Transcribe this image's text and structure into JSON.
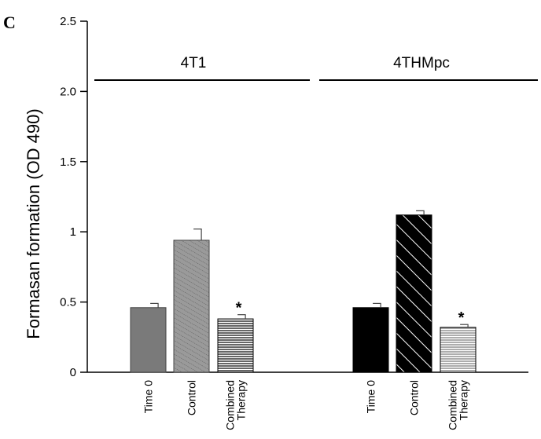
{
  "chart_data": {
    "type": "bar",
    "panel_label": "C",
    "ylabel": "Formasan formation  (OD 490)",
    "ylim": [
      0,
      2.5
    ],
    "yticks": [
      {
        "value": 0,
        "label": "0"
      },
      {
        "value": 0.5,
        "label": "0.5"
      },
      {
        "value": 1.0,
        "label": "1"
      },
      {
        "value": 1.5,
        "label": "1.5"
      },
      {
        "value": 2.0,
        "label": "2.0"
      },
      {
        "value": 2.5,
        "label": "2.5"
      }
    ],
    "groups": [
      {
        "name": "4T1",
        "bars": [
          {
            "category": "Time 0",
            "value": 0.46,
            "error": 0.03,
            "fill": "solid-gray",
            "star": false
          },
          {
            "category": "Control",
            "value": 0.94,
            "error": 0.08,
            "fill": "dotted-diagonal",
            "star": false
          },
          {
            "category": "Combined Therapy",
            "value": 0.38,
            "error": 0.03,
            "fill": "horizontal-lines",
            "star": true
          }
        ]
      },
      {
        "name": "4THMpc",
        "bars": [
          {
            "category": "Time 0",
            "value": 0.46,
            "error": 0.03,
            "fill": "solid-black",
            "star": false
          },
          {
            "category": "Control",
            "value": 1.12,
            "error": 0.03,
            "fill": "white-diagonal-on-black",
            "star": false
          },
          {
            "category": "Combined Therapy",
            "value": 0.32,
            "error": 0.02,
            "fill": "horizontal-lines",
            "star": true
          }
        ]
      }
    ],
    "significance_marker": "*",
    "colors": {
      "gray_bar": "#7a7a7a",
      "black_bar": "#000000",
      "axis": "#000000"
    }
  }
}
